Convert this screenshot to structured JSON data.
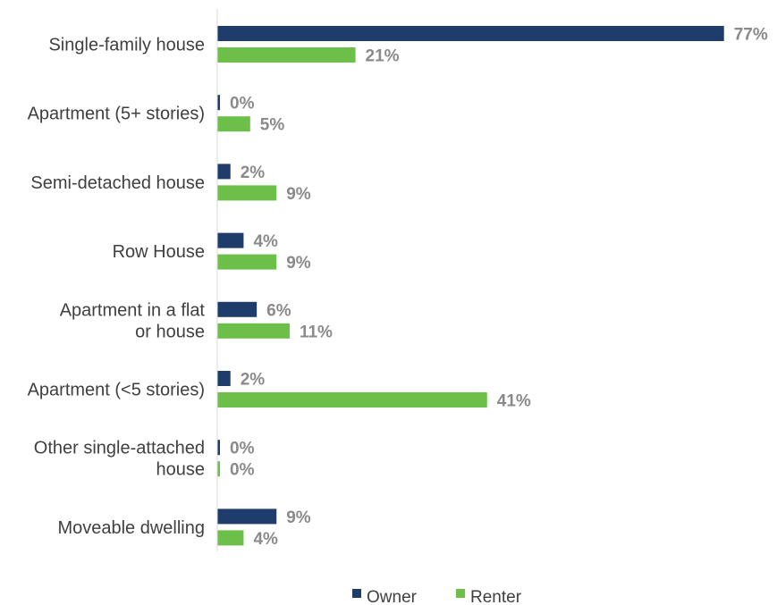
{
  "chart_data": {
    "type": "bar",
    "orientation": "horizontal",
    "categories": [
      [
        "Single-family house"
      ],
      [
        "Apartment (5+ stories)"
      ],
      [
        "Semi-detached house"
      ],
      [
        "Row House"
      ],
      [
        "Apartment in a flat",
        "or house"
      ],
      [
        "Apartment (<5 stories)"
      ],
      [
        "Other single-attached",
        "house"
      ],
      [
        "Moveable dwelling"
      ]
    ],
    "series": [
      {
        "name": "Owner",
        "color": "#1f3d6b",
        "values": [
          77,
          0,
          2,
          4,
          6,
          2,
          0,
          9
        ],
        "labels": [
          "77%",
          "0%",
          "2%",
          "4%",
          "6%",
          "2%",
          "0%",
          "9%"
        ]
      },
      {
        "name": "Renter",
        "color": "#6cc04a",
        "values": [
          21,
          5,
          9,
          9,
          11,
          41,
          0,
          4
        ],
        "labels": [
          "21%",
          "5%",
          "9%",
          "9%",
          "11%",
          "41%",
          "0%",
          "4%"
        ]
      }
    ],
    "legend_position": "bottom",
    "grid": false
  }
}
